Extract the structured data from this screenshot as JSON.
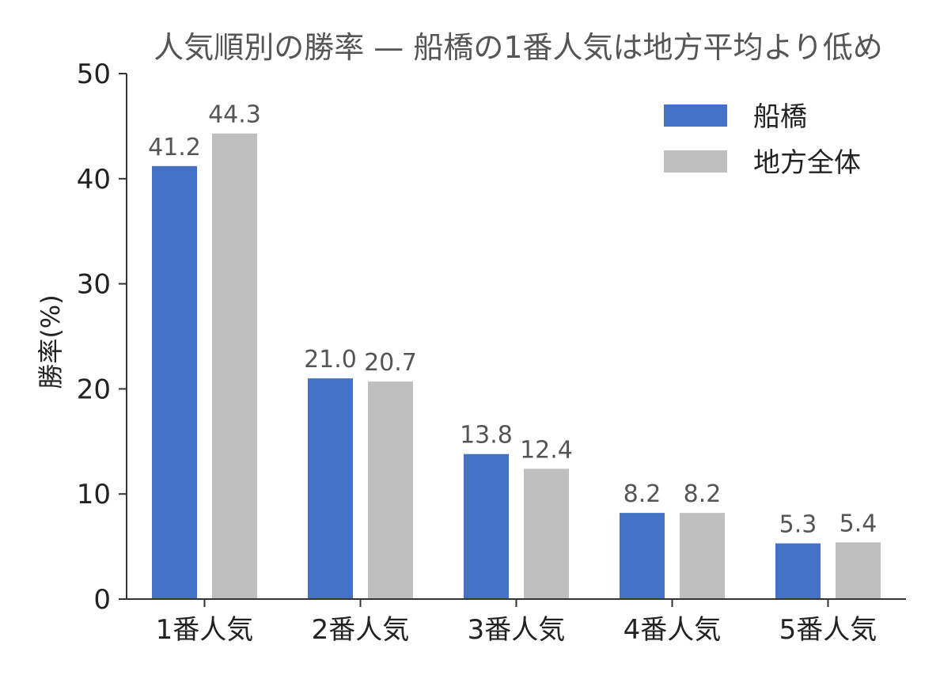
{
  "chart_data": {
    "type": "bar",
    "title": "人気順別の勝率 — 船橋の1番人気は地方平均より低め",
    "xlabel": "",
    "ylabel": "勝率(%)",
    "categories": [
      "1番人気",
      "2番人気",
      "3番人気",
      "4番人気",
      "5番人気"
    ],
    "series": [
      {
        "name": "船橋",
        "values": [
          41.2,
          21.0,
          13.8,
          8.2,
          5.3
        ],
        "color": "#4472c4"
      },
      {
        "name": "地方全体",
        "values": [
          44.3,
          20.7,
          12.4,
          8.2,
          5.4
        ],
        "color": "#bfbfbf"
      }
    ],
    "ylim": [
      0,
      50
    ],
    "yticks": [
      0,
      10,
      20,
      30,
      40,
      50
    ],
    "grid": false,
    "legend": "top-right",
    "data_labels": true
  }
}
